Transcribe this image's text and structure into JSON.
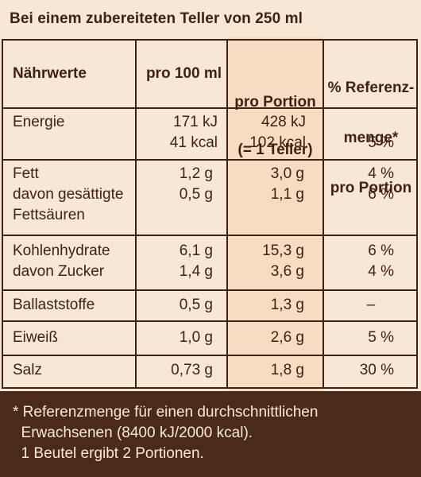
{
  "header": {
    "title": "Bei einem zubereiteten Teller von 250 ml"
  },
  "columns": {
    "c1": "Nährwerte",
    "c2": "pro 100 ml",
    "c3_line1": "pro Portion",
    "c3_line2": "(= 1 Teller)",
    "c4_line1": "% Referenz-",
    "c4_line2": "menge*",
    "c4_line3": "pro Portion"
  },
  "rows": [
    {
      "name": [
        "Energie",
        ""
      ],
      "per100": [
        "171 kJ",
        "41 kcal"
      ],
      "portion": [
        "428 kJ",
        "102 kcal"
      ],
      "ref": [
        "",
        "5 %"
      ]
    },
    {
      "name": [
        "Fett",
        "davon gesättigte",
        "Fettsäuren"
      ],
      "per100": [
        "1,2 g",
        "0,5 g"
      ],
      "portion": [
        "3,0 g",
        "1,1 g"
      ],
      "ref": [
        "4 %",
        "6 %"
      ]
    },
    {
      "name": [
        "Kohlenhydrate",
        "davon Zucker"
      ],
      "per100": [
        "6,1 g",
        "1,4 g"
      ],
      "portion": [
        "15,3 g",
        "3,6 g"
      ],
      "ref": [
        "6 %",
        "4 %"
      ]
    },
    {
      "name": [
        "Ballaststoffe"
      ],
      "per100": [
        "0,5 g"
      ],
      "portion": [
        "1,3 g"
      ],
      "ref": [
        "–"
      ]
    },
    {
      "name": [
        "Eiweiß"
      ],
      "per100": [
        "1,0 g"
      ],
      "portion": [
        "2,6 g"
      ],
      "ref": [
        "5 %"
      ]
    },
    {
      "name": [
        "Salz"
      ],
      "per100": [
        "0,73 g"
      ],
      "portion": [
        "1,8 g"
      ],
      "ref": [
        "30 %"
      ]
    }
  ],
  "footer": {
    "line1": "* Referenzmenge für einen durchschnittlichen",
    "line2": "  Erwachsenen (8400 kJ/2000 kcal).",
    "line3": "  1 Beutel ergibt 2 Portionen."
  }
}
